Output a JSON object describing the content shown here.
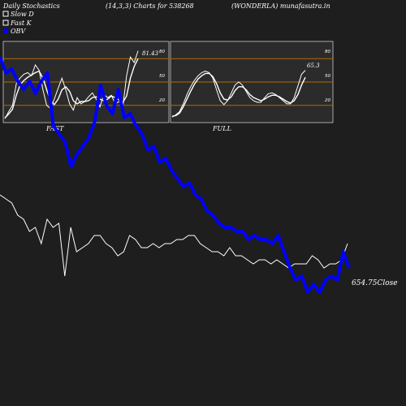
{
  "header": {
    "title": "Daily Stochastics",
    "params": "(14,3,3) Charts for 538268",
    "symbol": "(WONDERLA) munafasutra.in"
  },
  "legend": [
    {
      "label": "Slow  D",
      "color": "#ffffff",
      "swatch": "outline"
    },
    {
      "label": "Fast K",
      "color": "#ffffff",
      "swatch": "outline"
    },
    {
      "label": "OBV",
      "color": "#0000ff",
      "swatch": "filled"
    }
  ],
  "colors": {
    "background": "#1e1e1e",
    "panel": "#2b2b2b",
    "grid_level": "#b36b00",
    "stoch": "#ffffff",
    "obv": "#0000ff",
    "price": "#ffffff"
  },
  "chart_data": [
    {
      "type": "line",
      "panel_label": "FAST",
      "ylim": [
        0,
        100
      ],
      "levels": [
        20,
        50,
        80
      ],
      "tick_labels": [
        "80",
        "50",
        "20"
      ],
      "last_value_label": "81.43",
      "series": [
        {
          "values": [
            3,
            12,
            20,
            48,
            55,
            60,
            62,
            58,
            72,
            65,
            40,
            20,
            16,
            28,
            42,
            55,
            40,
            22,
            14,
            30,
            22,
            25,
            31,
            36,
            28,
            18,
            34,
            30,
            33,
            22,
            25,
            18,
            58,
            82,
            75,
            90
          ]
        },
        {
          "values": [
            4,
            9,
            15,
            33,
            46,
            52,
            56,
            59,
            62,
            64,
            55,
            40,
            26,
            21,
            28,
            40,
            44,
            38,
            26,
            22,
            25,
            25,
            26,
            30,
            31,
            28,
            26,
            28,
            32,
            30,
            27,
            24,
            32,
            55,
            70,
            80
          ]
        }
      ]
    },
    {
      "type": "line",
      "panel_label": "FULL",
      "ylim": [
        0,
        100
      ],
      "levels": [
        20,
        50,
        80
      ],
      "tick_labels": [
        "80",
        "50",
        "20"
      ],
      "last_value_label": "65.3",
      "series": [
        {
          "values": [
            5,
            8,
            12,
            22,
            34,
            44,
            52,
            58,
            62,
            64,
            62,
            55,
            40,
            26,
            21,
            26,
            36,
            46,
            50,
            46,
            38,
            30,
            26,
            24,
            24,
            30,
            35,
            36,
            34,
            30,
            26,
            22,
            22,
            30,
            45,
            60,
            65
          ]
        },
        {
          "values": [
            6,
            7,
            10,
            18,
            28,
            38,
            47,
            54,
            58,
            61,
            61,
            57,
            48,
            36,
            28,
            27,
            31,
            39,
            44,
            44,
            40,
            34,
            30,
            28,
            26,
            28,
            31,
            33,
            33,
            31,
            28,
            25,
            23,
            26,
            34,
            46,
            56
          ]
        }
      ]
    },
    {
      "type": "line",
      "series": [
        {
          "name": "OBV",
          "values": [
            86,
            82,
            83,
            80,
            78,
            80,
            77,
            80,
            82,
            69,
            67,
            65,
            59,
            62,
            64,
            66,
            70,
            79,
            74,
            72,
            78,
            71,
            72,
            69,
            67,
            63,
            64,
            60,
            61,
            58,
            56,
            54,
            55,
            52,
            51,
            48,
            47,
            45,
            44,
            44,
            43,
            43,
            41,
            42,
            41,
            41,
            40,
            42,
            38,
            34,
            31,
            32,
            28,
            30,
            28,
            31,
            32,
            31,
            38,
            34
          ]
        },
        {
          "name": "Close",
          "values": [
            52,
            51,
            50,
            47,
            46,
            43,
            44,
            40,
            46,
            44,
            45,
            32,
            44,
            38,
            39,
            40,
            42,
            42,
            40,
            39,
            37,
            38,
            42,
            41,
            39,
            39,
            40,
            39,
            40,
            40,
            41,
            41,
            42,
            42,
            40,
            39,
            38,
            38,
            37,
            39,
            37,
            37,
            36,
            35,
            36,
            36,
            35,
            36,
            35,
            34,
            35,
            35,
            35,
            37,
            36,
            34,
            35,
            35,
            36,
            40
          ]
        }
      ],
      "last_value_label": "654.75Close"
    }
  ]
}
